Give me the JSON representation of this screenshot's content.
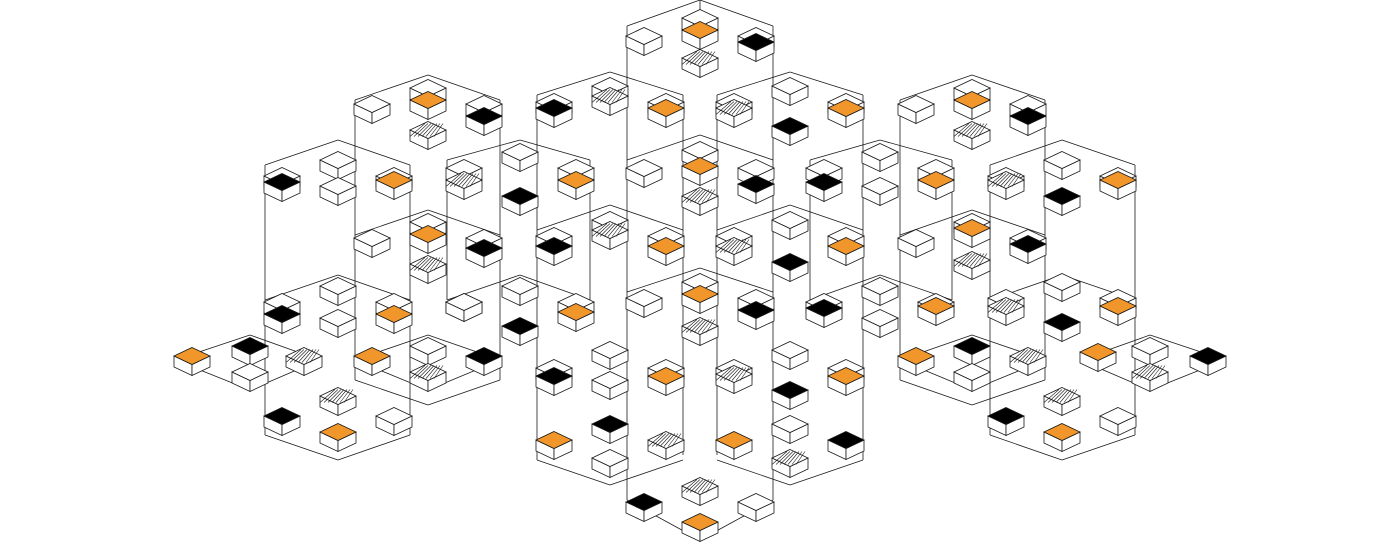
{
  "colors": {
    "background": "#ffffff",
    "line": "#1a1a1a",
    "accent_orange": "#f0962a",
    "accent_black": "#000000"
  },
  "diagram": {
    "kind": "isometric-cube-lattice",
    "top_face_fills": [
      "orange",
      "black",
      "white",
      "hatched"
    ]
  }
}
